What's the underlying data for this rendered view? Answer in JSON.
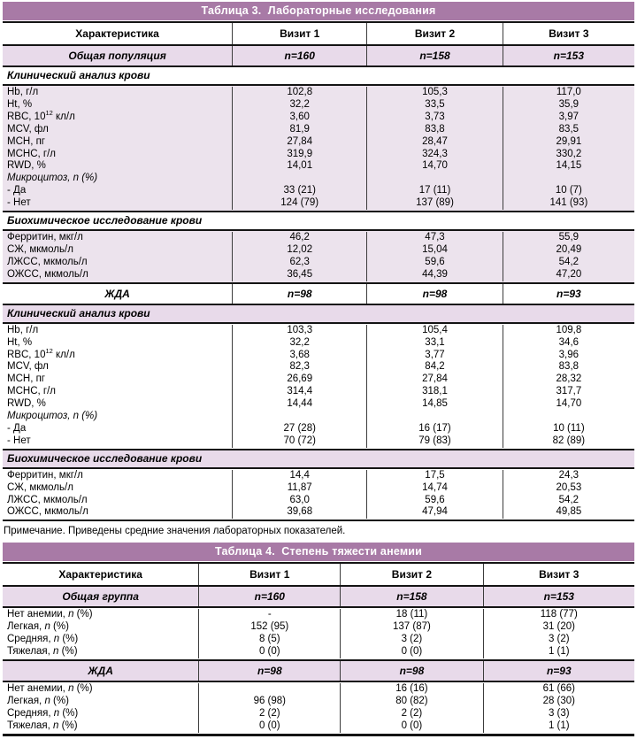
{
  "colors": {
    "header_bar": "#a87aa6",
    "group_row_shaded": "#e8daea",
    "data_block_shaded": "#ece3ed",
    "border_dark": "#141414",
    "title_text": "#ffffff"
  },
  "table3": {
    "title": "Таблица 3.  Лабораторные исследования",
    "columns": [
      "Характеристика",
      "Визит 1",
      "Визит 2",
      "Визит 3"
    ],
    "note": "Примечание. Приведены средние значения лабораторных показателей.",
    "blocks": [
      {
        "type": "group",
        "shaded": true,
        "label": "Общая популяция",
        "values": [
          "n=160",
          "n=158",
          "n=153"
        ]
      },
      {
        "type": "section",
        "shaded": false,
        "label": "Клинический анализ крови"
      },
      {
        "type": "data",
        "shaded": true,
        "rows": [
          {
            "label": "Hb, г/л",
            "values": [
              "102,8",
              "105,3",
              "117,0"
            ]
          },
          {
            "label": "Ht, %",
            "values": [
              "32,2",
              "33,5",
              "35,9"
            ]
          },
          {
            "label": "RBC, 10<sup>12</sup> кл/л",
            "values": [
              "3,60",
              "3,73",
              "3,97"
            ]
          },
          {
            "label": "MCV, фл",
            "values": [
              "81,9",
              "83,8",
              "83,5"
            ]
          },
          {
            "label": "MCH, пг",
            "values": [
              "27,84",
              "28,47",
              "29,91"
            ]
          },
          {
            "label": "MCHC, г/л",
            "values": [
              "319,9",
              "324,3",
              "330,2"
            ]
          },
          {
            "label": "RWD, %",
            "values": [
              "14,01",
              "14,70",
              "14,15"
            ]
          },
          {
            "label": "Микроцитоз, n (%)",
            "italic": true,
            "values": [
              "",
              "",
              ""
            ]
          },
          {
            "label": "- Да",
            "values": [
              "33 (21)",
              "17 (11)",
              "10 (7)"
            ]
          },
          {
            "label": "- Нет",
            "values": [
              "124 (79)",
              "137 (89)",
              "141 (93)"
            ]
          }
        ]
      },
      {
        "type": "section",
        "shaded": false,
        "label": "Биохимическое исследование крови"
      },
      {
        "type": "data",
        "shaded": true,
        "rows": [
          {
            "label": "Ферритин, мкг/л",
            "values": [
              "46,2",
              "47,3",
              "55,9"
            ]
          },
          {
            "label": "СЖ, мкмоль/л",
            "values": [
              "12,02",
              "15,04",
              "20,49"
            ]
          },
          {
            "label": "ЛЖСС, мкмоль/л",
            "values": [
              "62,3",
              "59,6",
              "54,2"
            ]
          },
          {
            "label": "ОЖСС, мкмоль/л",
            "values": [
              "36,45",
              "44,39",
              "47,20"
            ]
          }
        ]
      },
      {
        "type": "group",
        "shaded": false,
        "label": "ЖДА",
        "values": [
          "n=98",
          "n=98",
          "n=93"
        ]
      },
      {
        "type": "section",
        "shaded": true,
        "label": "Клинический анализ крови"
      },
      {
        "type": "data",
        "shaded": false,
        "rows": [
          {
            "label": "Hb, г/л",
            "values": [
              "103,3",
              "105,4",
              "109,8"
            ]
          },
          {
            "label": "Ht, %",
            "values": [
              "32,2",
              "33,1",
              "34,6"
            ]
          },
          {
            "label": "RBC, 10<sup>12</sup> кл/л",
            "values": [
              "3,68",
              "3,77",
              "3,96"
            ]
          },
          {
            "label": "MCV, фл",
            "values": [
              "82,3",
              "84,2",
              "83,8"
            ]
          },
          {
            "label": "MCH, пг",
            "values": [
              "26,69",
              "27,84",
              "28,32"
            ]
          },
          {
            "label": "MCHC, г/л",
            "values": [
              "314,4",
              "318,1",
              "317,7"
            ]
          },
          {
            "label": "RWD, %",
            "values": [
              "14,44",
              "14,85",
              "14,70"
            ]
          },
          {
            "label": "Микроцитоз, n (%)",
            "italic": true,
            "values": [
              "",
              "",
              ""
            ]
          },
          {
            "label": "- Да",
            "values": [
              "27 (28)",
              "16 (17)",
              "10 (11)"
            ]
          },
          {
            "label": "- Нет",
            "values": [
              "70 (72)",
              "79 (83)",
              "82 (89)"
            ]
          }
        ]
      },
      {
        "type": "section",
        "shaded": true,
        "label": "Биохимическое исследование крови"
      },
      {
        "type": "data",
        "shaded": false,
        "rows": [
          {
            "label": "Ферритин, мкг/л",
            "values": [
              "14,4",
              "17,5",
              "24,3"
            ]
          },
          {
            "label": "СЖ, мкмоль/л",
            "values": [
              "11,87",
              "14,74",
              "20,53"
            ]
          },
          {
            "label": "ЛЖСС, мкмоль/л",
            "values": [
              "63,0",
              "59,6",
              "54,2"
            ]
          },
          {
            "label": "ОЖСС, мкмоль/л",
            "values": [
              "39,68",
              "47,94",
              "49,85"
            ]
          }
        ]
      }
    ]
  },
  "table4": {
    "title": "Таблица 4.  Степень тяжести анемии",
    "columns": [
      "Характеристика",
      "Визит 1",
      "Визит 2",
      "Визит 3"
    ],
    "blocks": [
      {
        "type": "group",
        "shaded": true,
        "label": "Общая группа",
        "values": [
          "n=160",
          "n=158",
          "n=153"
        ]
      },
      {
        "type": "data",
        "shaded": false,
        "rows": [
          {
            "label": "Нет анемии, <i>n</i> (%)",
            "values": [
              "-",
              "18 (11)",
              "118 (77)"
            ]
          },
          {
            "label": "Легкая, <i>n</i> (%)",
            "values": [
              "152 (95)",
              "137 (87)",
              "31 (20)"
            ]
          },
          {
            "label": "Средняя, <i>n</i> (%)",
            "values": [
              "8 (5)",
              "3 (2)",
              "3 (2)"
            ]
          },
          {
            "label": "Тяжелая, <i>n</i> (%)",
            "values": [
              "0 (0)",
              "0 (0)",
              "1 (1)"
            ]
          }
        ]
      },
      {
        "type": "group",
        "shaded": true,
        "label": "ЖДА",
        "values": [
          "n=98",
          "n=98",
          "n=93"
        ]
      },
      {
        "type": "data",
        "shaded": false,
        "rows": [
          {
            "label": "Нет анемии, <i>n</i> (%)",
            "values": [
              "",
              "16 (16)",
              "61 (66)"
            ]
          },
          {
            "label": "Легкая, <i>n</i> (%)",
            "values": [
              "96 (98)",
              "80 (82)",
              "28 (30)"
            ]
          },
          {
            "label": "Средняя, <i>n</i> (%)",
            "values": [
              "2 (2)",
              "2 (2)",
              "3 (3)"
            ]
          },
          {
            "label": "Тяжелая, <i>n</i> (%)",
            "values": [
              "0 (0)",
              "0 (0)",
              "1 (1)"
            ]
          }
        ]
      }
    ]
  }
}
